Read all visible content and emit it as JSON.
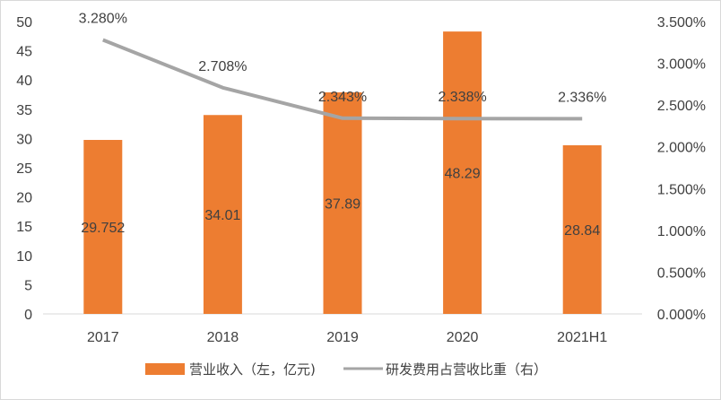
{
  "chart_data": {
    "type": "bar+line",
    "categories": [
      "2017",
      "2018",
      "2019",
      "2020",
      "2021H1"
    ],
    "series": [
      {
        "name": "营业收入（左，亿元)",
        "type": "bar",
        "axis": "left",
        "color": "#ed7d31",
        "values": [
          29.752,
          34.01,
          37.89,
          48.29,
          28.84
        ],
        "labels": [
          "29.752",
          "34.01",
          "37.89",
          "48.29",
          "28.84"
        ]
      },
      {
        "name": "研发费用占营收比重（右）",
        "type": "line",
        "axis": "right",
        "color": "#a5a5a5",
        "values": [
          3.28,
          2.708,
          2.343,
          2.338,
          2.336
        ],
        "labels": [
          "3.280%",
          "2.708%",
          "2.343%",
          "2.338%",
          "2.336%"
        ]
      }
    ],
    "y_left": {
      "min": 0,
      "max": 50,
      "ticks": [
        "0",
        "5",
        "10",
        "15",
        "20",
        "25",
        "30",
        "35",
        "40",
        "45",
        "50"
      ]
    },
    "y_right": {
      "min": 0,
      "max": 3.5,
      "ticks": [
        "0.000%",
        "0.500%",
        "1.000%",
        "1.500%",
        "2.000%",
        "2.500%",
        "3.000%",
        "3.500%"
      ]
    },
    "grid": false,
    "legend_position": "bottom"
  }
}
